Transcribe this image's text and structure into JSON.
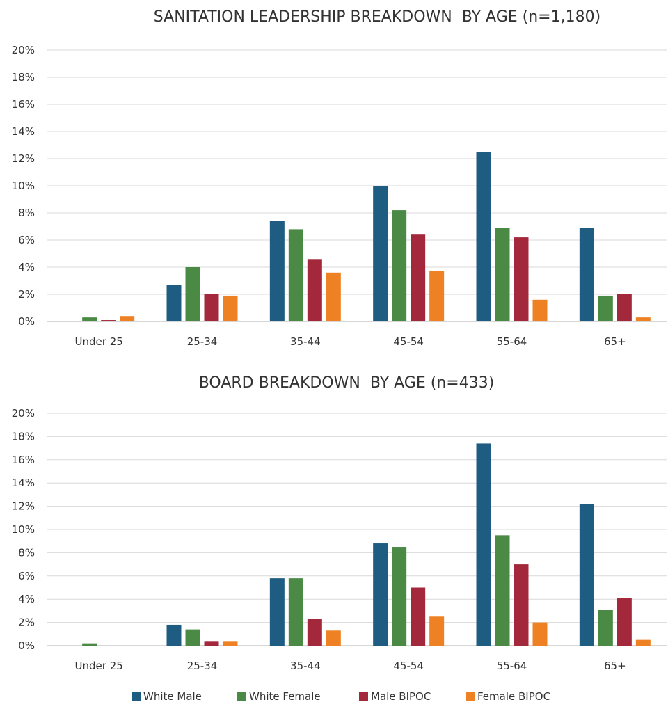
{
  "colors": {
    "white_male": "#1f5c82",
    "white_female": "#4a8a45",
    "male_bipoc": "#a3283b",
    "female_bipoc": "#ef8125",
    "grid": "#d9d9d9",
    "text": "#333333"
  },
  "legend": [
    "White Male",
    "White Female",
    "Male BIPOC",
    "Female BIPOC"
  ],
  "chart_data": [
    {
      "type": "bar",
      "title": "SANITATION LEADERSHIP BREAKDOWN  BY AGE (n=1,180)",
      "xlabel": "",
      "ylabel": "",
      "ylim": [
        0,
        20
      ],
      "yticks": [
        "0%",
        "2%",
        "4%",
        "6%",
        "8%",
        "10%",
        "12%",
        "14%",
        "16%",
        "18%",
        "20%"
      ],
      "grid": true,
      "legend_position": "bottom",
      "categories": [
        "Under 25",
        "25-34",
        "35-44",
        "45-54",
        "55-64",
        "65+"
      ],
      "series": [
        {
          "name": "White Male",
          "color": "#1f5c82",
          "values": [
            0.0,
            2.7,
            7.4,
            10.0,
            12.5,
            6.9
          ]
        },
        {
          "name": "White Female",
          "color": "#4a8a45",
          "values": [
            0.3,
            4.0,
            6.8,
            8.2,
            6.9,
            1.9
          ]
        },
        {
          "name": "Male BIPOC",
          "color": "#a3283b",
          "values": [
            0.1,
            2.0,
            4.6,
            6.4,
            6.2,
            2.0
          ]
        },
        {
          "name": "Female BIPOC",
          "color": "#ef8125",
          "values": [
            0.4,
            1.9,
            3.6,
            3.7,
            1.6,
            0.3
          ]
        }
      ]
    },
    {
      "type": "bar",
      "title": "BOARD BREAKDOWN  BY AGE (n=433)",
      "xlabel": "",
      "ylabel": "",
      "ylim": [
        0,
        20
      ],
      "yticks": [
        "0%",
        "2%",
        "4%",
        "6%",
        "8%",
        "10%",
        "12%",
        "14%",
        "16%",
        "18%",
        "20%"
      ],
      "grid": true,
      "legend_position": "bottom",
      "categories": [
        "Under 25",
        "25-34",
        "35-44",
        "45-54",
        "55-64",
        "65+"
      ],
      "series": [
        {
          "name": "White Male",
          "color": "#1f5c82",
          "values": [
            0.0,
            1.8,
            5.8,
            8.8,
            17.4,
            12.2
          ]
        },
        {
          "name": "White Female",
          "color": "#4a8a45",
          "values": [
            0.2,
            1.4,
            5.8,
            8.5,
            9.5,
            3.1
          ]
        },
        {
          "name": "Male BIPOC",
          "color": "#a3283b",
          "values": [
            0.0,
            0.4,
            2.3,
            5.0,
            7.0,
            4.1
          ]
        },
        {
          "name": "Female BIPOC",
          "color": "#ef8125",
          "values": [
            0.0,
            0.4,
            1.3,
            2.5,
            2.0,
            0.5
          ]
        }
      ]
    }
  ]
}
